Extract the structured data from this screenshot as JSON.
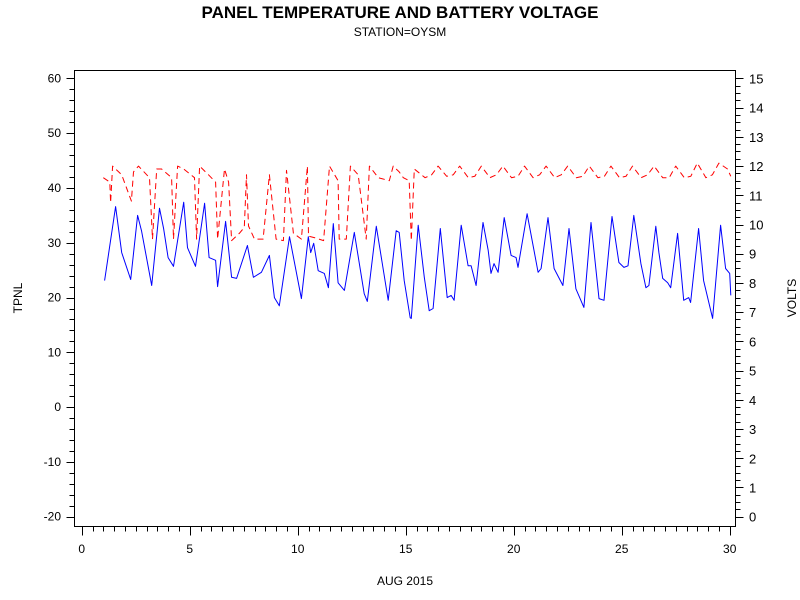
{
  "chart_data": {
    "type": "line",
    "title": "PANEL TEMPERATURE AND BATTERY VOLTAGE",
    "subtitle": "STATION=OYSM",
    "xlabel": "AUG 2015",
    "ylabel": "TPNL",
    "y2label": "VOLTS",
    "xlim": [
      0,
      30
    ],
    "ylim": [
      -20,
      60
    ],
    "y2lim": [
      0,
      15
    ],
    "xticks": [
      0,
      5,
      10,
      15,
      20,
      25,
      30
    ],
    "yticks": [
      -20,
      -10,
      0,
      10,
      20,
      30,
      40,
      50,
      60
    ],
    "y2ticks": [
      0,
      1,
      2,
      3,
      4,
      5,
      6,
      7,
      8,
      9,
      10,
      11,
      12,
      13,
      14,
      15
    ],
    "grid": false,
    "colors": {
      "temperature": "#0000ff",
      "volts": "#ff0000"
    },
    "series": [
      {
        "name": "TPNL",
        "axis": "left",
        "style": "solid",
        "x": [
          1.06,
          1.57,
          1.85,
          2.27,
          2.59,
          2.77,
          3.24,
          3.6,
          3.79,
          4.0,
          4.25,
          4.72,
          4.9,
          5.27,
          5.69,
          5.9,
          6.2,
          6.29,
          6.66,
          6.94,
          7.17,
          7.67,
          7.95,
          8.32,
          8.69,
          8.92,
          9.15,
          9.62,
          10.17,
          10.49,
          10.6,
          10.74,
          10.95,
          11.23,
          11.42,
          11.65,
          11.87,
          12.16,
          12.62,
          13.08,
          13.22,
          13.64,
          14.19,
          14.56,
          14.7,
          14.93,
          15.21,
          15.26,
          15.58,
          15.86,
          16.09,
          16.27,
          16.6,
          16.92,
          17.1,
          17.24,
          17.57,
          17.89,
          18.03,
          18.26,
          18.58,
          18.82,
          18.95,
          19.09,
          19.28,
          19.56,
          19.88,
          20.11,
          20.2,
          20.62,
          20.94,
          21.13,
          21.27,
          21.59,
          21.87,
          22.28,
          22.56,
          22.88,
          23.25,
          23.58,
          23.95,
          24.18,
          24.55,
          24.87,
          25.1,
          25.29,
          25.56,
          25.89,
          26.12,
          26.26,
          26.58,
          26.72,
          26.9,
          27.13,
          27.27,
          27.59,
          27.87,
          28.1,
          28.19,
          28.56,
          28.79,
          29.21,
          29.58,
          29.81,
          30.0,
          30.05
        ],
        "y": [
          23.1,
          36.6,
          28.2,
          23.3,
          35.0,
          32.2,
          22.2,
          36.3,
          32.6,
          27.3,
          25.7,
          37.4,
          29.1,
          25.7,
          37.2,
          27.3,
          26.8,
          22.0,
          33.9,
          23.7,
          23.5,
          29.5,
          23.7,
          24.6,
          27.7,
          20.0,
          18.5,
          31.1,
          19.8,
          31.1,
          28.2,
          29.9,
          24.9,
          24.4,
          21.8,
          33.5,
          22.7,
          21.3,
          31.9,
          20.7,
          19.3,
          33.0,
          19.5,
          32.2,
          31.9,
          23.1,
          16.3,
          16.2,
          33.2,
          23.7,
          17.6,
          18.0,
          32.6,
          20.0,
          20.4,
          19.5,
          33.2,
          25.8,
          25.8,
          22.2,
          33.7,
          28.6,
          24.4,
          26.2,
          24.6,
          34.6,
          27.7,
          27.3,
          25.5,
          35.3,
          28.6,
          24.6,
          25.3,
          34.6,
          25.3,
          22.2,
          32.6,
          21.6,
          18.2,
          33.7,
          19.8,
          19.5,
          34.8,
          26.4,
          25.5,
          25.8,
          35.0,
          26.2,
          21.8,
          22.2,
          33.0,
          28.2,
          23.5,
          22.7,
          21.8,
          31.7,
          19.5,
          20.0,
          19.1,
          32.6,
          23.1,
          16.2,
          33.2,
          25.3,
          24.4,
          20.4
        ]
      },
      {
        "name": "VOLTS",
        "axis": "right",
        "style": "dashed",
        "x": [
          1.0,
          1.3,
          1.34,
          1.43,
          1.85,
          2.3,
          2.4,
          2.63,
          3.14,
          3.28,
          3.47,
          3.7,
          4.16,
          4.25,
          4.44,
          4.72,
          5.22,
          5.32,
          5.46,
          5.87,
          6.2,
          6.29,
          6.61,
          6.8,
          6.94,
          7.3,
          7.53,
          7.63,
          7.72,
          8.0,
          8.4,
          8.69,
          9.0,
          9.34,
          9.48,
          9.8,
          10.17,
          10.45,
          10.5,
          10.77,
          11.2,
          11.47,
          11.87,
          11.92,
          12.25,
          12.44,
          12.8,
          13.17,
          13.32,
          13.73,
          14.24,
          14.42,
          14.7,
          14.89,
          15.16,
          15.26,
          15.4,
          15.9,
          16.2,
          16.5,
          16.9,
          17.2,
          17.5,
          17.9,
          18.2,
          18.5,
          18.9,
          19.2,
          19.5,
          19.9,
          20.2,
          20.5,
          20.9,
          21.2,
          21.5,
          21.9,
          22.2,
          22.5,
          22.9,
          23.2,
          23.5,
          23.9,
          24.2,
          24.5,
          24.9,
          25.2,
          25.5,
          25.9,
          26.2,
          26.5,
          26.9,
          27.2,
          27.5,
          27.9,
          28.2,
          28.5,
          28.9,
          29.2,
          29.5,
          29.9,
          30.05
        ],
        "y": [
          11.6,
          11.45,
          10.75,
          12.0,
          11.7,
          10.8,
          11.8,
          12.0,
          11.6,
          9.5,
          11.9,
          11.9,
          11.6,
          9.5,
          12.0,
          11.9,
          11.6,
          9.5,
          12.0,
          11.7,
          11.45,
          9.5,
          11.9,
          11.45,
          9.45,
          9.7,
          9.9,
          11.7,
          9.95,
          9.5,
          9.5,
          11.7,
          9.5,
          9.45,
          11.85,
          9.7,
          9.5,
          12.0,
          9.6,
          9.55,
          9.45,
          12.0,
          11.5,
          9.5,
          9.5,
          12.0,
          11.7,
          9.5,
          12.0,
          11.6,
          11.5,
          12.0,
          11.8,
          11.6,
          11.5,
          9.45,
          11.9,
          11.6,
          11.7,
          12.0,
          11.65,
          11.7,
          12.0,
          11.6,
          11.65,
          12.0,
          11.6,
          11.7,
          12.0,
          11.6,
          11.65,
          12.0,
          11.6,
          11.7,
          12.0,
          11.6,
          11.7,
          12.0,
          11.6,
          11.65,
          12.0,
          11.6,
          11.65,
          12.0,
          11.6,
          11.65,
          12.0,
          11.6,
          11.7,
          12.0,
          11.6,
          11.6,
          12.0,
          11.6,
          11.65,
          12.1,
          11.6,
          11.7,
          12.1,
          11.9,
          11.65
        ]
      }
    ]
  }
}
